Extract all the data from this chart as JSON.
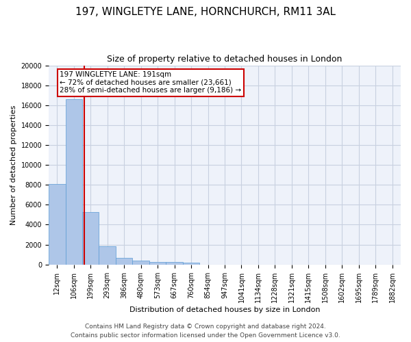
{
  "title_line1": "197, WINGLETYE LANE, HORNCHURCH, RM11 3AL",
  "title_line2": "Size of property relative to detached houses in London",
  "xlabel": "Distribution of detached houses by size in London",
  "ylabel": "Number of detached properties",
  "categories": [
    "12sqm",
    "106sqm",
    "199sqm",
    "293sqm",
    "386sqm",
    "480sqm",
    "573sqm",
    "667sqm",
    "760sqm",
    "854sqm",
    "947sqm",
    "1041sqm",
    "1134sqm",
    "1228sqm",
    "1321sqm",
    "1415sqm",
    "1508sqm",
    "1602sqm",
    "1695sqm",
    "1789sqm",
    "1882sqm"
  ],
  "values": [
    8100,
    16600,
    5300,
    1850,
    700,
    380,
    280,
    230,
    200,
    0,
    0,
    0,
    0,
    0,
    0,
    0,
    0,
    0,
    0,
    0,
    0
  ],
  "bar_color": "#aec6e8",
  "bar_edge_color": "#5b9bd5",
  "annotation_text": "197 WINGLETYE LANE: 191sqm\n← 72% of detached houses are smaller (23,661)\n28% of semi-detached houses are larger (9,186) →",
  "annotation_box_color": "#ffffff",
  "annotation_box_edge_color": "#cc0000",
  "vline_color": "#cc0000",
  "ylim": [
    0,
    20000
  ],
  "yticks": [
    0,
    2000,
    4000,
    6000,
    8000,
    10000,
    12000,
    14000,
    16000,
    18000,
    20000
  ],
  "footer_line1": "Contains HM Land Registry data © Crown copyright and database right 2024.",
  "footer_line2": "Contains public sector information licensed under the Open Government Licence v3.0.",
  "grid_color": "#c8d0e0",
  "bg_color": "#eef2fa",
  "title1_fontsize": 11,
  "title2_fontsize": 9,
  "tick_fontsize": 7,
  "ylabel_fontsize": 8,
  "xlabel_fontsize": 8,
  "footer_fontsize": 6.5,
  "annotation_fontsize": 7.5,
  "vline_x": 1.62
}
